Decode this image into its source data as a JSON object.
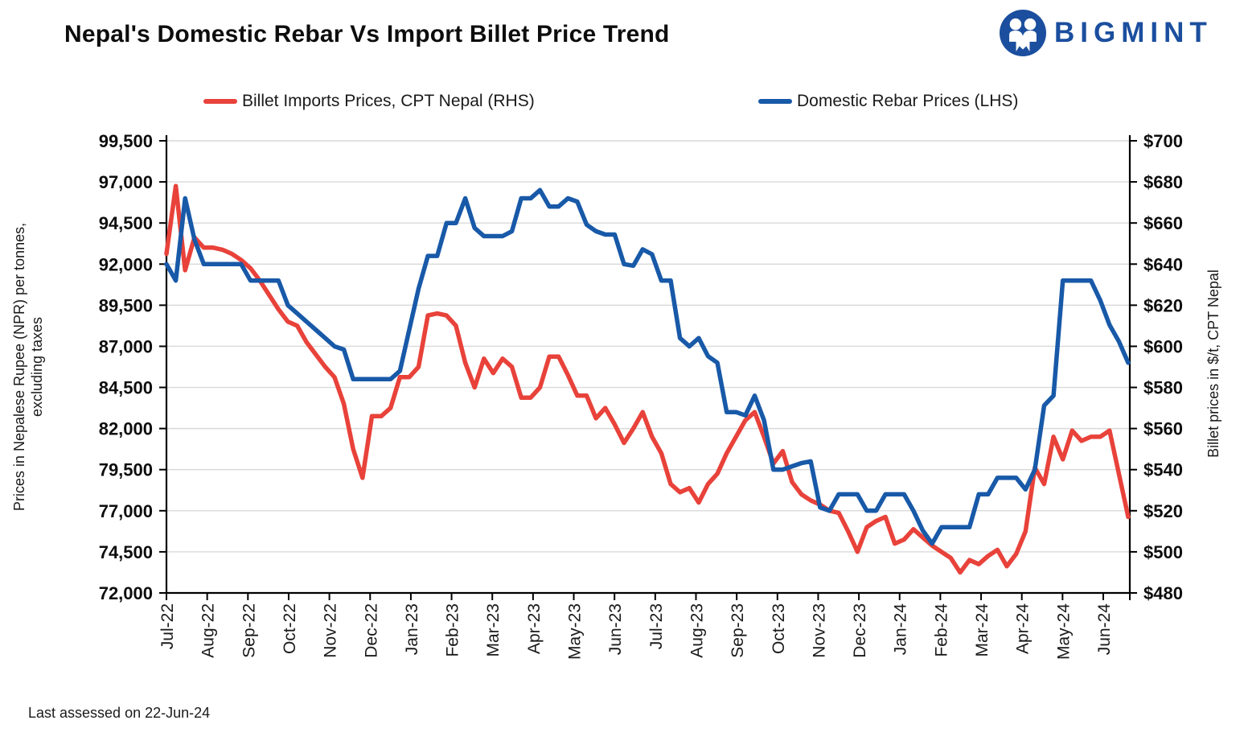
{
  "header": {
    "title": "Nepal's Domestic Rebar Vs Import Billet Price Trend",
    "logo_text": "BIGMINT",
    "logo_color": "#1b4e9e"
  },
  "legend": {
    "billet_label": "Billet Imports Prices, CPT Nepal (RHS)",
    "rebar_label": "Domestic Rebar Prices (LHS)"
  },
  "footer": {
    "note": "Last assessed on 22-Jun-24"
  },
  "chart_data": {
    "type": "line",
    "title": "Nepal's Domestic Rebar Vs Import Billet Price Trend",
    "frequency": "weekly",
    "grid": true,
    "legend_position": "top",
    "x_tick_labels": [
      "Jul-22",
      "Aug-22",
      "Sep-22",
      "Oct-22",
      "Nov-22",
      "Dec-22",
      "Jan-23",
      "Feb-23",
      "Mar-23",
      "Apr-23",
      "May-23",
      "Jun-23",
      "Jul-23",
      "Aug-23",
      "Sep-23",
      "Oct-23",
      "Nov-23",
      "Dec-23",
      "Jan-24",
      "Feb-24",
      "Mar-24",
      "Apr-24",
      "May-24",
      "Jun-24"
    ],
    "y_left": {
      "label_line1": "Prices in Nepalese Rupee (NPR) per tonnes,",
      "label_line2": "excluding taxes",
      "min": 72000,
      "max": 99500,
      "tick_labels": [
        "99,500",
        "97,000",
        "94,500",
        "92,000",
        "89,500",
        "87,000",
        "84,500",
        "82,000",
        "79,500",
        "77,000",
        "74,500",
        "72,000"
      ]
    },
    "y_right": {
      "label": "Billet prices in $/t, CPT Nepal",
      "min": 480,
      "max": 700,
      "tick_labels": [
        "$700",
        "$680",
        "$660",
        "$640",
        "$620",
        "$600",
        "$580",
        "$560",
        "$540",
        "$520",
        "$500",
        "$480"
      ]
    },
    "series": [
      {
        "name": "Billet Imports Prices, CPT Nepal (RHS)",
        "axis": "right",
        "color": "#E8423A",
        "values": [
          645,
          678,
          637,
          653,
          648,
          648,
          647,
          645,
          642,
          638,
          632,
          625,
          618,
          612,
          610,
          602,
          596,
          590,
          585,
          572,
          550,
          536,
          566,
          566,
          570,
          585,
          585,
          590,
          615,
          616,
          615,
          610,
          592,
          580,
          594,
          587,
          594,
          590,
          575,
          575,
          580,
          595,
          595,
          586,
          576,
          576,
          565,
          570,
          562,
          553,
          560,
          568,
          556,
          548,
          533,
          529,
          531,
          524,
          533,
          538,
          548,
          556,
          564,
          568,
          556,
          543,
          549,
          534,
          528,
          525,
          523,
          520,
          519,
          510,
          500,
          512,
          515,
          517,
          504,
          506,
          511,
          507,
          503,
          500,
          497,
          490,
          496,
          494,
          498,
          501,
          493,
          499,
          510,
          541,
          533,
          556,
          545,
          559,
          554,
          556,
          556,
          559,
          538,
          517
        ]
      },
      {
        "name": "Domestic Rebar Prices (LHS)",
        "axis": "left",
        "color": "#1859A8",
        "values": [
          92000,
          91000,
          96000,
          93500,
          92000,
          92000,
          92000,
          92000,
          92000,
          91000,
          91000,
          91000,
          91000,
          89500,
          89000,
          88500,
          88000,
          87500,
          87000,
          86800,
          85000,
          85000,
          85000,
          85000,
          85000,
          85500,
          88000,
          90500,
          92500,
          92500,
          94500,
          94500,
          96000,
          94200,
          93700,
          93700,
          93700,
          94000,
          96000,
          96000,
          96500,
          95500,
          95500,
          96000,
          95800,
          94400,
          94000,
          93800,
          93800,
          92000,
          91900,
          92900,
          92600,
          91000,
          91000,
          87500,
          87000,
          87500,
          86400,
          86000,
          83000,
          83000,
          82800,
          84000,
          82500,
          79500,
          79500,
          79700,
          79900,
          80000,
          77200,
          77000,
          78000,
          78000,
          78000,
          77000,
          77000,
          78000,
          78000,
          78000,
          77000,
          75800,
          75000,
          76000,
          76000,
          76000,
          76000,
          78000,
          78000,
          79000,
          79000,
          79000,
          78300,
          79500,
          83400,
          84000,
          91000,
          91000,
          91000,
          91000,
          89800,
          88300,
          87300,
          86000
        ]
      }
    ]
  }
}
